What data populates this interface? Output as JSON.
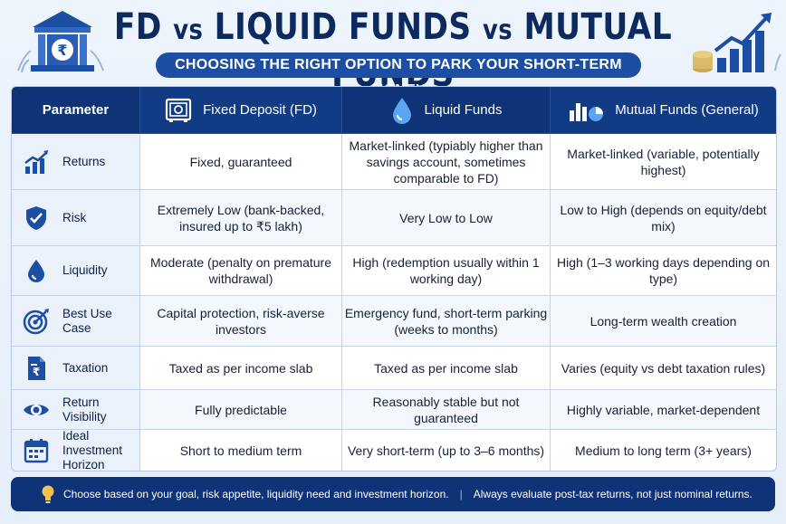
{
  "header": {
    "title_part1": "FD",
    "title_vs1": "vs",
    "title_part2": "LIQUID FUNDS",
    "title_vs2": "vs",
    "title_part3": "MUTUAL FUNDS",
    "subtitle": "CHOOSING THE RIGHT OPTION TO PARK YOUR SHORT-TERM MONEY",
    "left_icon": "bank-rupee-icon",
    "right_icon": "growth-chart-icon"
  },
  "table": {
    "headers": [
      {
        "label": "Parameter",
        "icon": ""
      },
      {
        "label": "Fixed Deposit (FD)",
        "icon": "safe-icon"
      },
      {
        "label": "Liquid Funds",
        "icon": "water-drop-icon"
      },
      {
        "label": "Mutual Funds (General)",
        "icon": "bar-pie-chart-icon"
      }
    ],
    "rows": [
      {
        "param": "Returns",
        "icon": "chart-up-icon",
        "fd": "Fixed, guaranteed",
        "liquid": "Market-linked (typiably higher than savings account, sometimes comparable to FD)",
        "mf": "Market-linked (variable, potentially highest)"
      },
      {
        "param": "Risk",
        "icon": "shield-check-icon",
        "fd": "Extremely Low (bank-backed, insured up to ₹5 lakh)",
        "liquid": "Very Low to Low",
        "mf": "Low to High (depends on equity/debt mix)"
      },
      {
        "param": "Liquidity",
        "icon": "liquidity-drop-icon",
        "fd": "Moderate (penalty on premature withdrawal)",
        "liquid": "High (redemption usually within 1 working day)",
        "mf": "High (1–3 working days depending on type)"
      },
      {
        "param": "Best Use Case",
        "icon": "target-icon",
        "fd": "Capital protection, risk-averse investors",
        "liquid": "Emergency fund, short-term parking (weeks to months)",
        "mf": "Long-term wealth creation"
      },
      {
        "param": "Taxation",
        "icon": "tax-document-icon",
        "fd": "Taxed as per income slab",
        "liquid": "Taxed as per income slab",
        "mf": "Varies (equity vs debt taxation rules)"
      },
      {
        "param": "Return Visibility",
        "icon": "eye-icon",
        "fd": "Fully predictable",
        "liquid": "Reasonably stable but not guaranteed",
        "mf": "Highly variable, market-dependent"
      },
      {
        "param": "Ideal Investment Horizon",
        "icon": "calendar-icon",
        "fd": "Short to medium term",
        "liquid": "Very short-term (up to 3–6 months)",
        "mf": "Medium to long term (3+ years)"
      }
    ]
  },
  "footer": {
    "note_left": "Choose based on your goal, risk appetite, liquidity need and investment horizon.",
    "separator": "|",
    "note_right": "Always evaluate post-tax returns, not just nominal returns.",
    "icon": "lightbulb-icon"
  },
  "colors": {
    "navy": "#0f3377",
    "accent_blue": "#1c4fa3",
    "title": "#0d2a5e"
  }
}
